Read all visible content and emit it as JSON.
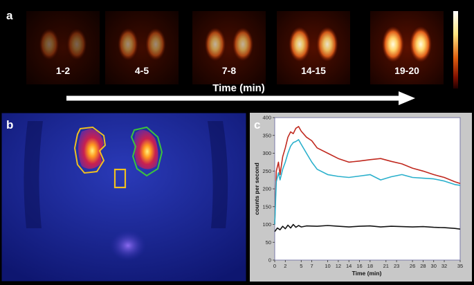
{
  "panel_letters": {
    "a": "a",
    "b": "b",
    "c": "c"
  },
  "panel_a": {
    "frames": [
      {
        "label": "1-2",
        "intensity": 0.15
      },
      {
        "label": "4-5",
        "intensity": 0.35
      },
      {
        "label": "7-8",
        "intensity": 0.55
      },
      {
        "label": "14-15",
        "intensity": 0.8
      },
      {
        "label": "19-20",
        "intensity": 1.0
      }
    ],
    "time_label": "Time (min)",
    "colors": {
      "arrow": "#ffffff",
      "hot": "#ffe680",
      "warm": "#d2461a",
      "background": "#1e0400"
    }
  },
  "panel_b": {
    "colors": {
      "background": "#1c2a9e",
      "left_roi": "#f0c020",
      "right_roi": "#3cc43c",
      "background_roi": "#f0c020",
      "kidney_hot": "#ffe060",
      "kidney_warm": "#c02040",
      "bladder": "#6a4ad8"
    }
  },
  "chart_data": {
    "type": "line",
    "xlabel": "Time (min)",
    "ylabel": "counts per second",
    "xlim": [
      0,
      35
    ],
    "ylim": [
      0,
      400
    ],
    "x_ticks": [
      0,
      2,
      5,
      7,
      10,
      12,
      14,
      16,
      18,
      21,
      23,
      26,
      28,
      30,
      32,
      35
    ],
    "y_ticks": [
      0,
      50,
      100,
      150,
      200,
      250,
      300,
      350,
      400
    ],
    "grid": false,
    "series": [
      {
        "color": "#c0281e",
        "x": [
          0,
          0.3,
          0.7,
          1,
          1.5,
          2,
          2.5,
          3,
          3.5,
          4,
          4.5,
          5,
          6,
          7,
          8,
          10,
          12,
          14,
          16,
          18,
          20,
          22,
          24,
          26,
          28,
          30,
          32,
          34,
          35
        ],
        "y": [
          100,
          250,
          275,
          240,
          290,
          315,
          345,
          360,
          355,
          370,
          375,
          362,
          345,
          335,
          315,
          300,
          285,
          275,
          278,
          282,
          285,
          277,
          270,
          258,
          250,
          240,
          232,
          220,
          215
        ]
      },
      {
        "color": "#2ab0cc",
        "x": [
          0,
          0.3,
          0.7,
          1,
          1.5,
          2,
          2.5,
          3,
          3.5,
          4,
          4.5,
          5,
          6,
          7,
          8,
          10,
          12,
          14,
          16,
          18,
          20,
          22,
          24,
          26,
          28,
          30,
          32,
          34,
          35
        ],
        "y": [
          100,
          220,
          245,
          225,
          255,
          275,
          300,
          320,
          330,
          333,
          338,
          325,
          300,
          275,
          255,
          240,
          235,
          232,
          236,
          240,
          225,
          234,
          240,
          232,
          230,
          228,
          222,
          212,
          210
        ]
      },
      {
        "color": "#111111",
        "x": [
          0,
          0.5,
          1,
          1.5,
          2,
          2.5,
          3,
          3.5,
          4,
          4.5,
          5,
          6,
          8,
          10,
          12,
          14,
          16,
          18,
          20,
          22,
          24,
          26,
          28,
          30,
          32,
          34,
          35
        ],
        "y": [
          80,
          90,
          85,
          95,
          88,
          98,
          90,
          100,
          92,
          97,
          93,
          96,
          95,
          97,
          95,
          93,
          95,
          96,
          93,
          95,
          94,
          93,
          94,
          92,
          91,
          89,
          87
        ]
      }
    ]
  }
}
